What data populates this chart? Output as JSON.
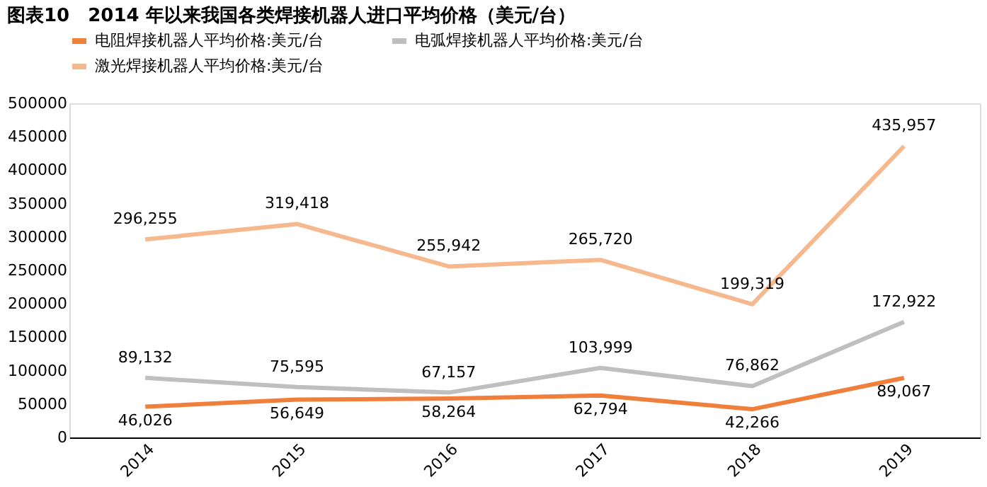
{
  "chart_data": {
    "type": "line",
    "title": "图表10　2014 年以来我国各类焊接机器人进口平均价格（美元/台）",
    "categories": [
      "2014",
      "2015",
      "2016",
      "2017",
      "2018",
      "2019"
    ],
    "series": [
      {
        "name": "电阻焊接机器人平均价格:美元/台",
        "color": "#f07f3c",
        "values": [
          46026,
          56649,
          58264,
          62794,
          42266,
          89067
        ],
        "value_labels": [
          "46,026",
          "56,649",
          "58,264",
          "62,794",
          "42,266",
          "89,067"
        ]
      },
      {
        "name": "电弧焊接机器人平均价格:美元/台",
        "color": "#bfbfbf",
        "values": [
          89132,
          75595,
          67157,
          103999,
          76862,
          172922
        ],
        "value_labels": [
          "89,132",
          "75,595",
          "67,157",
          "103,999",
          "76,862",
          "172,922"
        ]
      },
      {
        "name": "激光焊接机器人平均价格:美元/台",
        "color": "#f6b98e",
        "values": [
          296255,
          319418,
          255942,
          265720,
          199319,
          435957
        ],
        "value_labels": [
          "296,255",
          "319,418",
          "255,942",
          "265,720",
          "199,319",
          "435,957"
        ]
      }
    ],
    "ylim": [
      0,
      500000
    ],
    "yticks": [
      0,
      50000,
      100000,
      150000,
      200000,
      250000,
      300000,
      350000,
      400000,
      450000,
      500000
    ],
    "grid": false,
    "legend": "top",
    "marker": "none",
    "line_style": "solid"
  }
}
